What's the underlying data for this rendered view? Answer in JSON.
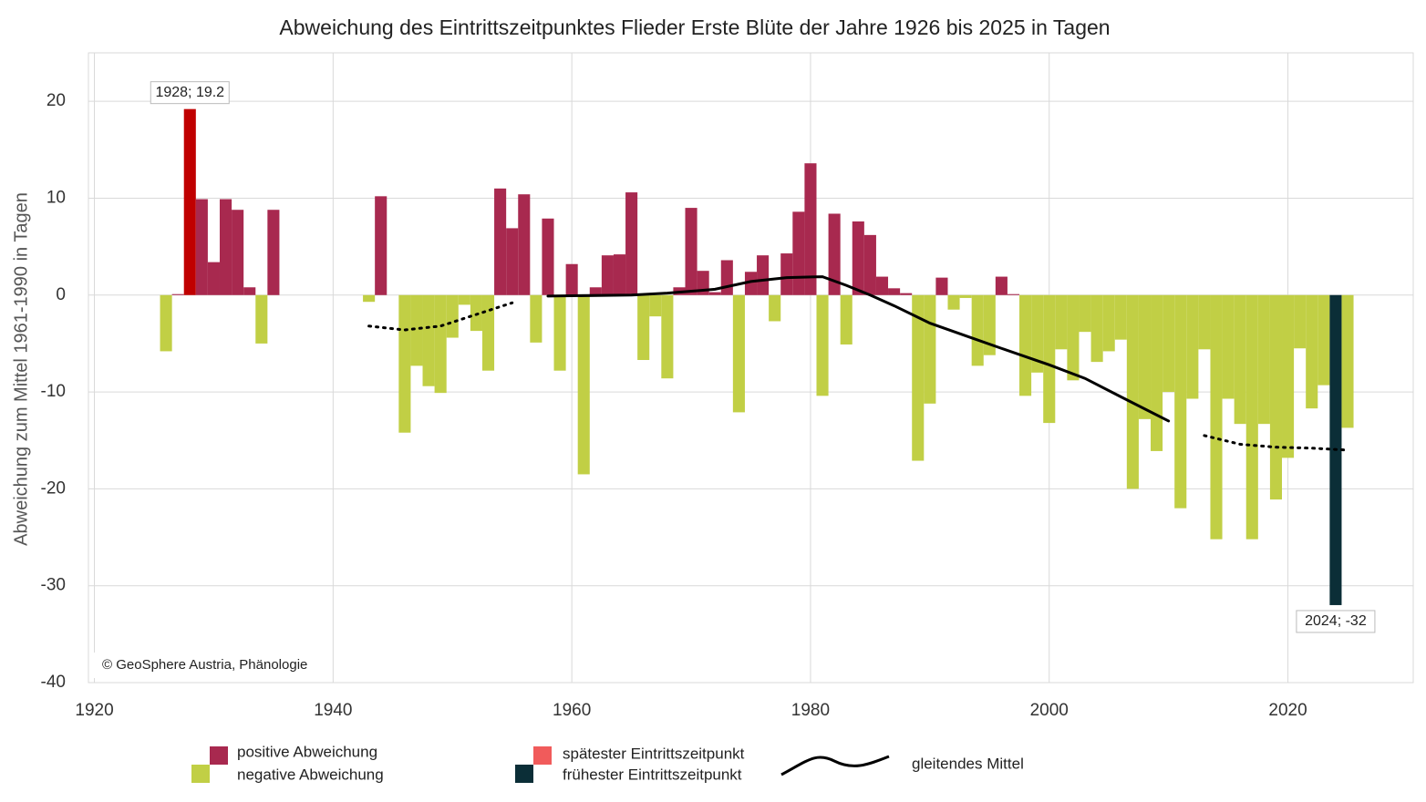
{
  "chart_data": {
    "type": "bar",
    "title": "Abweichung des Eintrittszeitpunktes Flieder Erste Blüte der Jahre 1926 bis 2025 in Tagen",
    "y_label": "Abweichung zum Mittel 1961-1990 in Tagen",
    "source": "© GeoSphere Austria, Phänologie",
    "x": [
      1926,
      1927,
      1928,
      1929,
      1930,
      1931,
      1932,
      1933,
      1934,
      1935,
      1936,
      1937,
      1938,
      1939,
      1940,
      1941,
      1942,
      1943,
      1944,
      1945,
      1946,
      1947,
      1948,
      1949,
      1950,
      1951,
      1952,
      1953,
      1954,
      1955,
      1956,
      1957,
      1958,
      1959,
      1960,
      1961,
      1962,
      1963,
      1964,
      1965,
      1966,
      1967,
      1968,
      1969,
      1970,
      1971,
      1972,
      1973,
      1974,
      1975,
      1976,
      1977,
      1978,
      1979,
      1980,
      1981,
      1982,
      1983,
      1984,
      1985,
      1986,
      1987,
      1988,
      1989,
      1990,
      1991,
      1992,
      1993,
      1994,
      1995,
      1996,
      1997,
      1998,
      1999,
      2000,
      2001,
      2002,
      2003,
      2004,
      2005,
      2006,
      2007,
      2008,
      2009,
      2010,
      2011,
      2012,
      2013,
      2014,
      2015,
      2016,
      2017,
      2018,
      2019,
      2020,
      2021,
      2022,
      2023,
      2024,
      2025
    ],
    "values": [
      -5.8,
      0.1,
      19.2,
      9.9,
      3.4,
      9.9,
      8.8,
      0.8,
      -5.0,
      8.8,
      null,
      null,
      null,
      null,
      null,
      null,
      null,
      -0.7,
      10.2,
      null,
      -14.2,
      -7.3,
      -9.4,
      -10.1,
      -4.4,
      -1.0,
      -3.7,
      -7.8,
      11.0,
      6.9,
      10.4,
      -4.9,
      7.9,
      -7.8,
      3.2,
      -18.5,
      0.8,
      4.1,
      4.2,
      10.6,
      -6.7,
      -2.2,
      -8.6,
      0.8,
      9.0,
      2.5,
      0.3,
      3.6,
      -12.1,
      2.4,
      4.1,
      -2.7,
      4.3,
      8.6,
      13.6,
      -10.4,
      8.4,
      -5.1,
      7.6,
      6.2,
      1.9,
      0.7,
      0.2,
      -17.1,
      -11.2,
      1.8,
      -1.5,
      -0.3,
      -7.3,
      -6.2,
      1.9,
      0.1,
      -10.4,
      -8.0,
      -13.2,
      -5.6,
      -8.8,
      -3.8,
      -6.9,
      -5.8,
      -4.6,
      -20.0,
      -12.8,
      -16.1,
      -10.0,
      -22.0,
      -10.7,
      -5.6,
      -25.2,
      -10.7,
      -13.3,
      -25.2,
      -13.3,
      -21.1,
      -16.8,
      -5.5,
      -11.7,
      -9.3,
      -32.0,
      -13.7
    ],
    "positive_color": "#a8294f",
    "negative_color": "#c1cf45",
    "max_color": "#c00000",
    "min_color": "#0b2e37",
    "annotations": [
      {
        "text": "1928; 19.2",
        "x": 1928,
        "y": 19.2
      },
      {
        "text": "2024; -32",
        "x": 2024,
        "y": -32
      }
    ],
    "moving_average": {
      "name": "gleitendes Mittel",
      "color": "#000000",
      "solid_range": [
        1958,
        2010
      ],
      "x": [
        1943,
        1946,
        1949,
        1952,
        1955,
        1958,
        1965,
        1968,
        1972,
        1975,
        1978,
        1981,
        1983,
        1985,
        1987,
        1990,
        1993,
        1996,
        2000,
        2003,
        2006,
        2010,
        2013,
        2016,
        2019,
        2022,
        2025
      ],
      "values": [
        -3.2,
        -3.6,
        -3.2,
        -2.0,
        -0.8,
        -0.1,
        0.0,
        0.2,
        0.6,
        1.4,
        1.8,
        1.9,
        1.0,
        0.0,
        -1.1,
        -2.9,
        -4.2,
        -5.5,
        -7.2,
        -8.6,
        -10.5,
        -13.0,
        -14.5,
        -15.4,
        -15.7,
        -15.8,
        -16.0
      ]
    },
    "legend": [
      {
        "name": "positive Abweichung",
        "color": "#a8294f"
      },
      {
        "name": "negative Abweichung",
        "color": "#c1cf45"
      },
      {
        "name": "spätester Eintrittszeitpunkt",
        "color": "#f15b5b"
      },
      {
        "name": "frühester Eintrittszeitpunkt",
        "color": "#0b2e37"
      }
    ],
    "xlim": [
      1919.5,
      2030.5
    ],
    "xticks": [
      1920,
      1940,
      1960,
      1980,
      2000,
      2020
    ],
    "ylim": [
      -40,
      25
    ],
    "yticks": [
      -40,
      -30,
      -20,
      -10,
      0,
      10,
      20
    ],
    "grid": true
  }
}
